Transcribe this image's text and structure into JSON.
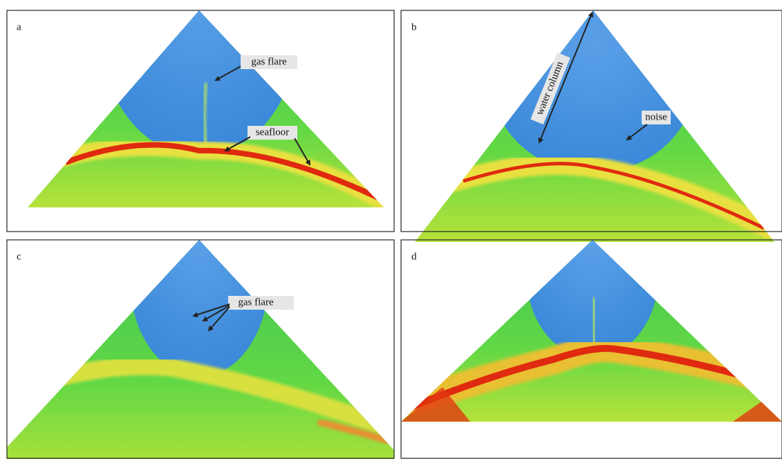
{
  "panels": [
    {
      "label": "a",
      "annotations": [
        "gas flare",
        "seafloor"
      ]
    },
    {
      "label": "b",
      "annotations": [
        "water column",
        "noise"
      ]
    },
    {
      "label": "c",
      "annotations": [
        "gas flare"
      ]
    },
    {
      "label": "d"
    }
  ]
}
